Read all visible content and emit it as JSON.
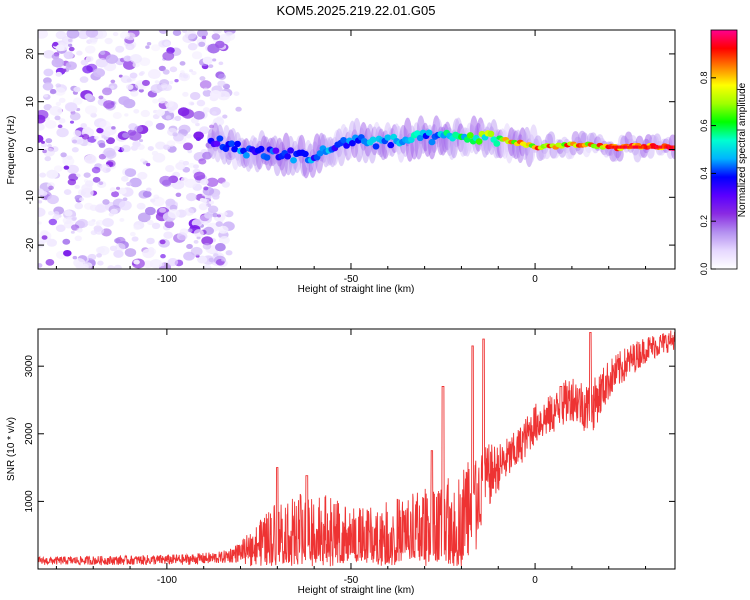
{
  "title": "KOM5.2025.219.22.01.G05",
  "chart_data": [
    {
      "type": "heatmap",
      "name": "spectrogram",
      "xlabel": "Height of straight line (km)",
      "ylabel": "Frequency (Hz)",
      "xlim": [
        -135,
        38
      ],
      "ylim": [
        -25,
        25
      ],
      "xticks": [
        -100,
        -50,
        0
      ],
      "yticks": [
        -20,
        -10,
        0,
        10,
        20
      ],
      "colorbar": {
        "label": "Normalized spectral amplitude",
        "range": [
          0,
          1
        ],
        "ticks": [
          0.0,
          0.2,
          0.4,
          0.6,
          0.8
        ],
        "stops": [
          "#ffffff",
          "#e6d8ff",
          "#b490f0",
          "#8a2be2",
          "#5a00ff",
          "#0000ff",
          "#00b4ff",
          "#00ffd0",
          "#00ff00",
          "#a0ff00",
          "#ffff00",
          "#ff8000",
          "#ff0000",
          "#ff0090"
        ]
      },
      "noise_region": [
        -135,
        -80
      ],
      "signal_track": [
        {
          "x": -88,
          "f": 2.0,
          "amp": 0.35
        },
        {
          "x": -80,
          "f": 0.0,
          "amp": 0.45
        },
        {
          "x": -70,
          "f": -1.0,
          "amp": 0.4
        },
        {
          "x": -60,
          "f": -1.5,
          "amp": 0.45
        },
        {
          "x": -50,
          "f": 2.0,
          "amp": 0.45
        },
        {
          "x": -40,
          "f": 1.5,
          "amp": 0.5
        },
        {
          "x": -30,
          "f": 2.5,
          "amp": 0.5
        },
        {
          "x": -20,
          "f": 2.5,
          "amp": 0.55
        },
        {
          "x": -12,
          "f": 2.5,
          "amp": 0.7
        },
        {
          "x": -5,
          "f": 1.5,
          "amp": 0.8
        },
        {
          "x": 0,
          "f": 0.5,
          "amp": 0.85
        },
        {
          "x": 10,
          "f": 1.0,
          "amp": 0.85
        },
        {
          "x": 20,
          "f": 0.5,
          "amp": 0.9
        },
        {
          "x": 38,
          "f": 0.5,
          "amp": 0.95
        }
      ]
    },
    {
      "type": "line",
      "name": "snr",
      "xlabel": "Height of straight line (km)",
      "ylabel": "SNR (10 * v/v)",
      "xlim": [
        -135,
        38
      ],
      "ylim": [
        0,
        3550
      ],
      "xticks": [
        -100,
        -50,
        0
      ],
      "yticks": [
        1000,
        2000,
        3000
      ],
      "color": "#ee3333",
      "series": [
        {
          "name": "SNR",
          "x": [
            -135,
            -110,
            -95,
            -85,
            -80,
            -75,
            -70,
            -65,
            -60,
            -55,
            -50,
            -45,
            -40,
            -35,
            -30,
            -25,
            -20,
            -17,
            -15,
            -13,
            -10,
            -5,
            0,
            5,
            10,
            15,
            20,
            25,
            30,
            38
          ],
          "mean": [
            120,
            130,
            140,
            170,
            250,
            400,
            550,
            600,
            620,
            600,
            500,
            520,
            550,
            600,
            650,
            700,
            800,
            1200,
            1100,
            1350,
            1500,
            1750,
            2150,
            2300,
            2550,
            2350,
            2800,
            3050,
            3250,
            3400
          ],
          "spread": [
            60,
            70,
            80,
            90,
            150,
            300,
            500,
            500,
            550,
            450,
            400,
            400,
            450,
            500,
            550,
            600,
            650,
            800,
            600,
            500,
            350,
            300,
            300,
            300,
            350,
            400,
            300,
            250,
            200,
            150
          ]
        }
      ],
      "peaks": [
        {
          "x": -70,
          "y": 1500
        },
        {
          "x": -62,
          "y": 1380
        },
        {
          "x": -28,
          "y": 1750
        },
        {
          "x": -25,
          "y": 2700
        },
        {
          "x": -17,
          "y": 3300
        },
        {
          "x": -14,
          "y": 3400
        },
        {
          "x": 7,
          "y": 2700
        },
        {
          "x": 15,
          "y": 3500
        }
      ]
    }
  ]
}
